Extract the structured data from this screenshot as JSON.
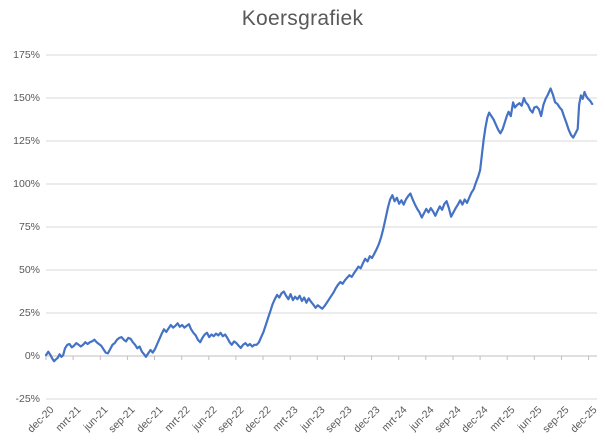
{
  "title": "Koersgrafiek",
  "colors": {
    "line": "#4472C4",
    "gridline": "#D9D9D9",
    "axis_line": "#BFBFBF",
    "text": "#595959",
    "background": "#FFFFFF"
  },
  "chart_data": {
    "type": "line",
    "title": "Koersgrafiek",
    "xlabel": "",
    "ylabel": "",
    "legend": "none",
    "grid": "horizontal",
    "ylim": [
      -25,
      175
    ],
    "y_tick_step": 25,
    "y_tick_labels": [
      "175%",
      "150%",
      "125%",
      "100%",
      "75%",
      "50%",
      "25%",
      "0%",
      "-25%"
    ],
    "y_tick_values": [
      175,
      150,
      125,
      100,
      75,
      50,
      25,
      0,
      -25
    ],
    "x_tick_labels": [
      "dec-20",
      "mrt-21",
      "jun-21",
      "sep-21",
      "dec-21",
      "mrt-22",
      "jun-22",
      "sep-22",
      "dec-22",
      "mrt-23",
      "jun-23",
      "sep-23",
      "dec-23",
      "mrt-24",
      "jun-24",
      "sep-24",
      "dec-24",
      "mrt-25",
      "jun-25",
      "sep-25",
      "dec-25"
    ],
    "x_unit": "months_since_dec_2020",
    "axis_crosses_at": 0,
    "series": [
      {
        "points": [
          [
            0,
            0.5
          ],
          [
            0.25,
            2.5
          ],
          [
            0.5,
            0.5
          ],
          [
            0.7,
            -1.5
          ],
          [
            0.9,
            -3
          ],
          [
            1.1,
            -2
          ],
          [
            1.3,
            -1
          ],
          [
            1.5,
            1
          ],
          [
            1.7,
            -0.5
          ],
          [
            1.9,
            0.5
          ],
          [
            2.1,
            4.5
          ],
          [
            2.35,
            6.5
          ],
          [
            2.6,
            7
          ],
          [
            2.85,
            5
          ],
          [
            3.1,
            6
          ],
          [
            3.35,
            7.5
          ],
          [
            3.6,
            6.5
          ],
          [
            3.85,
            5.5
          ],
          [
            4.1,
            6.5
          ],
          [
            4.35,
            8
          ],
          [
            4.6,
            7
          ],
          [
            4.85,
            8
          ],
          [
            5.1,
            8.5
          ],
          [
            5.35,
            9.5
          ],
          [
            5.6,
            8
          ],
          [
            5.85,
            7
          ],
          [
            6.1,
            6
          ],
          [
            6.35,
            4
          ],
          [
            6.6,
            2
          ],
          [
            6.85,
            1.5
          ],
          [
            7.1,
            4
          ],
          [
            7.35,
            6.5
          ],
          [
            7.6,
            7.5
          ],
          [
            7.85,
            9.5
          ],
          [
            8.1,
            10.5
          ],
          [
            8.35,
            11
          ],
          [
            8.6,
            9.5
          ],
          [
            8.85,
            8.5
          ],
          [
            9.1,
            10.5
          ],
          [
            9.35,
            10
          ],
          [
            9.6,
            8
          ],
          [
            9.85,
            6.5
          ],
          [
            10.1,
            4.5
          ],
          [
            10.35,
            5.5
          ],
          [
            10.6,
            2.5
          ],
          [
            10.85,
            1
          ],
          [
            11.05,
            -0.5
          ],
          [
            11.3,
            1.5
          ],
          [
            11.55,
            3.5
          ],
          [
            11.8,
            2
          ],
          [
            12.05,
            4
          ],
          [
            12.3,
            7
          ],
          [
            12.55,
            10
          ],
          [
            12.8,
            13
          ],
          [
            13.05,
            15.5
          ],
          [
            13.3,
            14
          ],
          [
            13.55,
            16
          ],
          [
            13.8,
            18
          ],
          [
            14.05,
            16.5
          ],
          [
            14.3,
            17.5
          ],
          [
            14.55,
            19
          ],
          [
            14.8,
            17
          ],
          [
            15.05,
            18
          ],
          [
            15.3,
            16.5
          ],
          [
            15.55,
            17.5
          ],
          [
            15.8,
            18.5
          ],
          [
            16.05,
            15.5
          ],
          [
            16.3,
            13.5
          ],
          [
            16.55,
            12
          ],
          [
            16.8,
            9.5
          ],
          [
            17.05,
            8
          ],
          [
            17.3,
            10.5
          ],
          [
            17.55,
            12.5
          ],
          [
            17.8,
            13.5
          ],
          [
            18.05,
            11
          ],
          [
            18.3,
            12.5
          ],
          [
            18.55,
            11.5
          ],
          [
            18.8,
            13
          ],
          [
            19.05,
            12
          ],
          [
            19.3,
            13.5
          ],
          [
            19.55,
            11.5
          ],
          [
            19.8,
            12.5
          ],
          [
            20.05,
            10.5
          ],
          [
            20.3,
            8
          ],
          [
            20.55,
            6.5
          ],
          [
            20.8,
            8.5
          ],
          [
            21.05,
            7.5
          ],
          [
            21.3,
            6
          ],
          [
            21.55,
            4.7
          ],
          [
            21.8,
            6.5
          ],
          [
            22.05,
            7.5
          ],
          [
            22.3,
            6
          ],
          [
            22.55,
            7
          ],
          [
            22.8,
            5.5
          ],
          [
            23.05,
            6.5
          ],
          [
            23.3,
            6.5
          ],
          [
            23.55,
            8
          ],
          [
            23.8,
            11
          ],
          [
            24.05,
            14
          ],
          [
            24.3,
            18
          ],
          [
            24.55,
            22
          ],
          [
            24.8,
            26
          ],
          [
            25.05,
            30
          ],
          [
            25.3,
            33
          ],
          [
            25.55,
            35.5
          ],
          [
            25.8,
            34
          ],
          [
            26.05,
            36.5
          ],
          [
            26.3,
            37.5
          ],
          [
            26.55,
            35
          ],
          [
            26.8,
            33
          ],
          [
            27.05,
            36
          ],
          [
            27.3,
            32.5
          ],
          [
            27.55,
            34.5
          ],
          [
            27.8,
            33
          ],
          [
            28.05,
            35
          ],
          [
            28.3,
            32
          ],
          [
            28.55,
            34
          ],
          [
            28.8,
            31
          ],
          [
            29.05,
            33.5
          ],
          [
            29.3,
            31.5
          ],
          [
            29.55,
            30
          ],
          [
            29.8,
            28
          ],
          [
            30.05,
            29.5
          ],
          [
            30.3,
            28.5
          ],
          [
            30.55,
            27.5
          ],
          [
            30.8,
            29
          ],
          [
            31.05,
            31
          ],
          [
            31.3,
            33
          ],
          [
            31.55,
            35
          ],
          [
            31.8,
            37
          ],
          [
            32.05,
            39.5
          ],
          [
            32.3,
            41.5
          ],
          [
            32.55,
            43
          ],
          [
            32.8,
            42
          ],
          [
            33.05,
            44
          ],
          [
            33.3,
            45.5
          ],
          [
            33.55,
            47
          ],
          [
            33.8,
            46
          ],
          [
            34.05,
            48
          ],
          [
            34.3,
            50
          ],
          [
            34.55,
            52
          ],
          [
            34.8,
            51
          ],
          [
            35.05,
            54
          ],
          [
            35.3,
            56.5
          ],
          [
            35.55,
            55
          ],
          [
            35.8,
            58
          ],
          [
            36.05,
            57
          ],
          [
            36.3,
            59.5
          ],
          [
            36.55,
            62
          ],
          [
            36.8,
            65
          ],
          [
            37.05,
            69
          ],
          [
            37.3,
            74
          ],
          [
            37.55,
            80
          ],
          [
            37.8,
            86
          ],
          [
            38.05,
            91
          ],
          [
            38.3,
            93.5
          ],
          [
            38.55,
            90
          ],
          [
            38.8,
            92
          ],
          [
            39.05,
            88.5
          ],
          [
            39.3,
            90.5
          ],
          [
            39.55,
            88
          ],
          [
            39.8,
            91
          ],
          [
            40.05,
            93
          ],
          [
            40.3,
            94.5
          ],
          [
            40.55,
            91
          ],
          [
            40.8,
            88
          ],
          [
            41.05,
            85.5
          ],
          [
            41.3,
            83.5
          ],
          [
            41.55,
            80.5
          ],
          [
            41.8,
            83
          ],
          [
            42.05,
            85.5
          ],
          [
            42.3,
            83.5
          ],
          [
            42.55,
            86
          ],
          [
            42.8,
            84
          ],
          [
            43.05,
            81.5
          ],
          [
            43.3,
            84.5
          ],
          [
            43.55,
            87
          ],
          [
            43.8,
            85
          ],
          [
            44.05,
            88.5
          ],
          [
            44.3,
            90
          ],
          [
            44.55,
            86
          ],
          [
            44.8,
            81
          ],
          [
            45.05,
            83.5
          ],
          [
            45.3,
            86
          ],
          [
            45.55,
            88
          ],
          [
            45.8,
            90.5
          ],
          [
            46.05,
            88
          ],
          [
            46.3,
            91
          ],
          [
            46.55,
            89
          ],
          [
            46.8,
            92
          ],
          [
            47.05,
            95
          ],
          [
            47.3,
            97
          ],
          [
            47.55,
            101
          ],
          [
            47.8,
            104.5
          ],
          [
            48.0,
            108
          ],
          [
            48.2,
            117
          ],
          [
            48.4,
            126
          ],
          [
            48.6,
            133
          ],
          [
            48.8,
            138.5
          ],
          [
            49.0,
            141.5
          ],
          [
            49.25,
            139.5
          ],
          [
            49.5,
            137.5
          ],
          [
            49.75,
            134.5
          ],
          [
            50.0,
            131.5
          ],
          [
            50.25,
            129.5
          ],
          [
            50.5,
            132
          ],
          [
            50.75,
            136
          ],
          [
            50.95,
            139.5
          ],
          [
            51.15,
            142
          ],
          [
            51.4,
            139.5
          ],
          [
            51.65,
            147.5
          ],
          [
            51.85,
            144.5
          ],
          [
            52.1,
            146
          ],
          [
            52.35,
            147
          ],
          [
            52.6,
            145.5
          ],
          [
            52.85,
            150
          ],
          [
            53.05,
            147.5
          ],
          [
            53.3,
            146
          ],
          [
            53.55,
            143
          ],
          [
            53.8,
            141.5
          ],
          [
            54.0,
            144.5
          ],
          [
            54.25,
            145
          ],
          [
            54.5,
            143.5
          ],
          [
            54.75,
            139.5
          ],
          [
            55.0,
            146
          ],
          [
            55.25,
            149.5
          ],
          [
            55.5,
            152
          ],
          [
            55.8,
            155.5
          ],
          [
            56.05,
            152
          ],
          [
            56.3,
            147.5
          ],
          [
            56.55,
            146.5
          ],
          [
            56.8,
            144.5
          ],
          [
            57.05,
            143
          ],
          [
            57.3,
            139
          ],
          [
            57.55,
            135.5
          ],
          [
            57.8,
            131.5
          ],
          [
            58.05,
            128.5
          ],
          [
            58.3,
            127
          ],
          [
            58.55,
            129.5
          ],
          [
            58.8,
            132
          ],
          [
            58.95,
            146
          ],
          [
            59.15,
            151.5
          ],
          [
            59.35,
            149.5
          ],
          [
            59.55,
            153.5
          ],
          [
            59.75,
            151
          ],
          [
            59.95,
            149.5
          ],
          [
            60.15,
            148.5
          ],
          [
            60.4,
            146.5
          ]
        ]
      }
    ]
  }
}
